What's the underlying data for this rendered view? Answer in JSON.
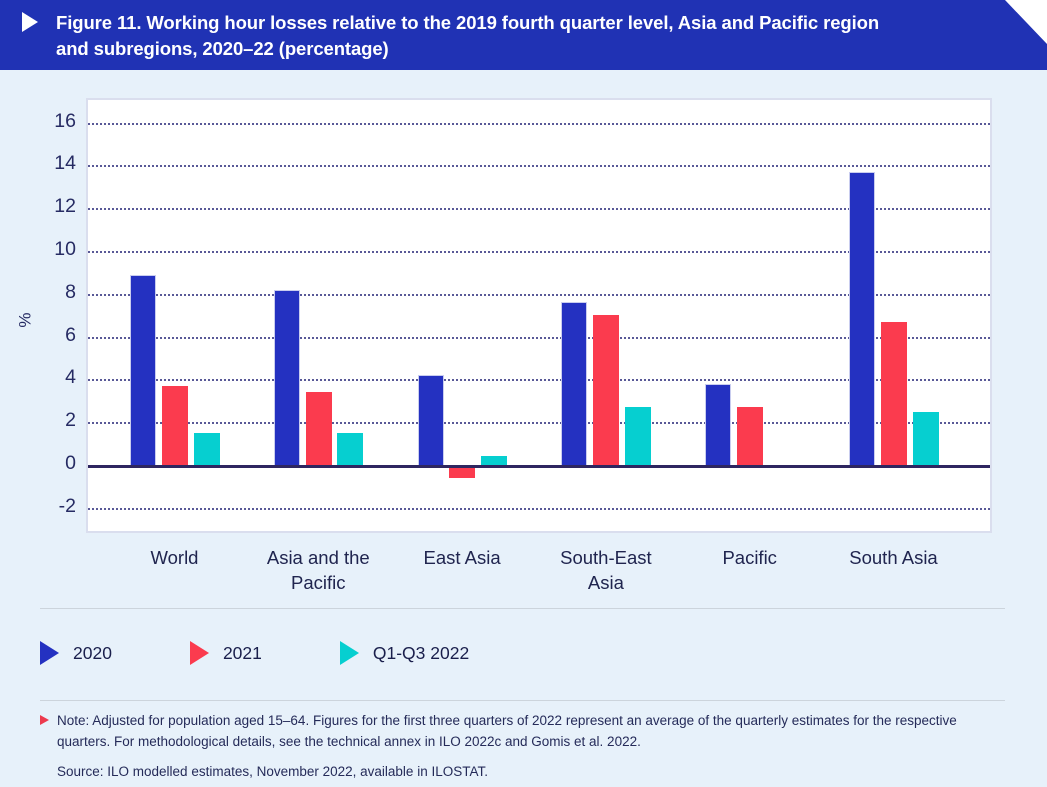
{
  "header": {
    "title": "Figure 11. Working hour losses relative to the 2019 fourth quarter level, Asia and Pacific region and subregions, 2020–22 (percentage)",
    "title_line1": "Figure 11. Working hour losses relative to the 2019 fourth quarter level, Asia and Pacific region",
    "title_line2": "and subregions, 2020–22 (percentage)"
  },
  "chart_data": {
    "type": "bar",
    "title": "Working hour losses relative to the 2019 fourth quarter level, Asia and Pacific region and subregions, 2020–22 (percentage)",
    "categories": [
      "World",
      "Asia and the Pacific",
      "East Asia",
      "South-East Asia",
      "Pacific",
      "South Asia"
    ],
    "series": [
      {
        "name": "2020",
        "color": "#2431c1",
        "values": [
          8.9,
          8.2,
          4.2,
          7.6,
          3.8,
          13.7
        ]
      },
      {
        "name": "2021",
        "color": "#fb3b4e",
        "values": [
          3.7,
          3.4,
          -0.5,
          7.0,
          2.7,
          6.7
        ]
      },
      {
        "name": "Q1-Q3 2022",
        "color": "#06cfd0",
        "values": [
          1.5,
          1.5,
          0.4,
          2.7,
          null,
          2.5
        ]
      }
    ],
    "ylabel": "%",
    "yticks": [
      16,
      14,
      12,
      10,
      8,
      6,
      4,
      2,
      0,
      -2
    ],
    "ylim": [
      -3,
      17.2
    ],
    "grid": "horizontal-dotted",
    "legend_position": "bottom-left"
  },
  "legend": {
    "items": [
      {
        "label": "2020",
        "color": "#2431c1"
      },
      {
        "label": "2021",
        "color": "#fb3b4e"
      },
      {
        "label": "Q1-Q3 2022",
        "color": "#06cfd0"
      }
    ]
  },
  "footnote": {
    "note": "Note: Adjusted for population aged 15–64. Figures for the first three quarters of 2022 represent an average of the quarterly estimates for the respective quarters. For methodological details, see the technical annex in ILO 2022c and Gomis et al. 2022.",
    "source": "Source: ILO modelled estimates, November 2022, available in ILOSTAT."
  },
  "colors": {
    "banner_bg": "#2032b4",
    "page_bg": "#e7f1fa",
    "plot_bg": "#ffffff",
    "axis_line": "#2e2660",
    "grid_dots": "#3d3d85",
    "text_navy": "#20254f",
    "note_bullet": "#ec3a4e",
    "divider": "#ccd4dc"
  }
}
